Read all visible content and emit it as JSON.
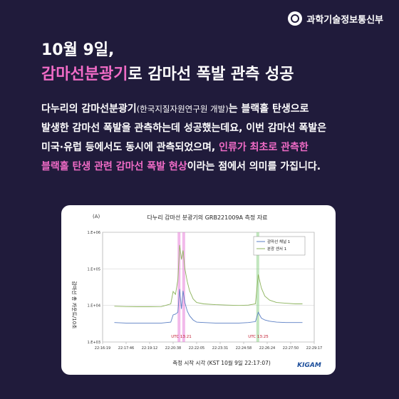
{
  "brand": {
    "name": "과학기술정보통신부",
    "logo_icon": "ministry-emblem-icon"
  },
  "heading": {
    "line1": "10월 9일,",
    "line2_highlight": "감마선분광기",
    "line2_rest": "로 감마선 폭발 관측 성공"
  },
  "body": {
    "p1": "다누리의 감마선분광기",
    "p1_small": "(한국지질자원연구원 개발)",
    "p2": "는 블랙홀 탄생으로",
    "p3": "발생한 감마선 폭발을 관측하는데 성공했는데요, 이번 감마선 폭발은",
    "p4": "미국·유럽 등에서도 동시에 관측되었으며, ",
    "p4_highlight": "인류가 최초로 관측한",
    "p5_highlight": "블랙홀 탄생 관련 감마선 폭발 현상",
    "p5": "이라는 점에서 의미를 가집니다."
  },
  "chart_data": {
    "type": "line",
    "panel_label": "(A)",
    "title": "다누리 감마선 분광기의 GRB221009A 측정 자료",
    "xlabel": "측정 시작 시각 (KST 10월 9일 22:17:07)",
    "ylabel": "감마선 총 카운트/10초",
    "x_ticks": [
      "22:16:19",
      "22:17:46",
      "22:19:12",
      "22:20:38",
      "22:22:05",
      "22:23:31",
      "22:24:58",
      "22:26:24",
      "22:27:50",
      "22:29:17"
    ],
    "y_ticks": [
      "1.E+03",
      "1.E+04",
      "1.E+05",
      "1.E+06"
    ],
    "y_scale": "log",
    "ylim": [
      1000,
      1000000
    ],
    "x_index_range": [
      0,
      9
    ],
    "legend_position": "top-right",
    "annotations": [
      {
        "label": "UTC 13:21",
        "x": 3.35,
        "color": "#c0182d"
      },
      {
        "label": "UTC 13:25",
        "x": 6.62,
        "color": "#c0182d"
      }
    ],
    "highlight_bands": [
      {
        "x": 3.25,
        "color": "#e77fd8"
      },
      {
        "x": 3.45,
        "color": "#e77fd8"
      },
      {
        "x": 6.6,
        "color": "#8fd18a"
      }
    ],
    "series": [
      {
        "name": "감마선 채널 1",
        "color": "#5b7fc4",
        "x": [
          0.5,
          1.0,
          1.5,
          2.0,
          2.5,
          2.9,
          3.0,
          3.1,
          3.2,
          3.28,
          3.35,
          3.42,
          3.5,
          3.6,
          3.7,
          3.85,
          4.0,
          4.3,
          4.8,
          5.3,
          5.8,
          6.2,
          6.5,
          6.62,
          6.75,
          6.9,
          7.1,
          7.4,
          7.8,
          8.2,
          8.5
        ],
        "y": [
          3400,
          3300,
          3300,
          3300,
          3300,
          3500,
          5500,
          5800,
          6500,
          28000,
          8000,
          25000,
          12000,
          7000,
          5200,
          4000,
          3500,
          3400,
          3300,
          3300,
          3300,
          3400,
          3600,
          6500,
          4500,
          4000,
          3700,
          3500,
          3400,
          3400,
          3400
        ]
      },
      {
        "name": "분광 센서 1",
        "color": "#8cb35c",
        "x": [
          0.5,
          1.0,
          1.5,
          2.0,
          2.5,
          2.9,
          3.0,
          3.1,
          3.2,
          3.28,
          3.35,
          3.42,
          3.5,
          3.6,
          3.7,
          3.85,
          4.0,
          4.3,
          4.8,
          5.3,
          5.8,
          6.2,
          6.5,
          6.62,
          6.75,
          6.9,
          7.1,
          7.4,
          7.8,
          8.2,
          8.5
        ],
        "y": [
          9500,
          9300,
          9200,
          9200,
          9300,
          11000,
          24000,
          20000,
          50000,
          450000,
          180000,
          320000,
          100000,
          45000,
          25000,
          15000,
          12000,
          11000,
          10500,
          10200,
          10000,
          10200,
          11000,
          70000,
          30000,
          18000,
          14000,
          12000,
          11500,
          11000,
          11000
        ]
      }
    ]
  },
  "watermark": "KIGAM"
}
